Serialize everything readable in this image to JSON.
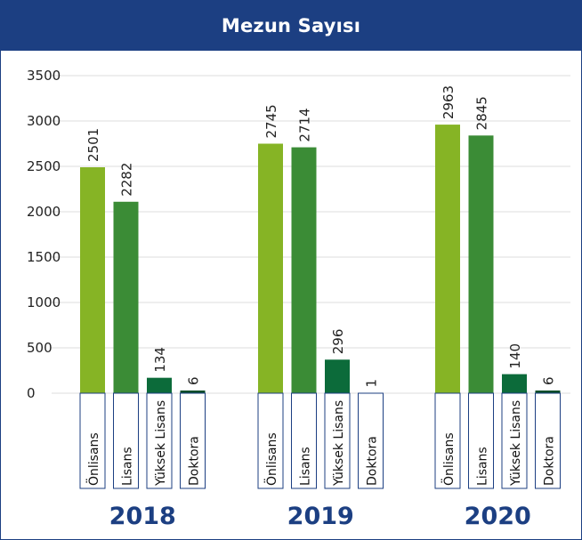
{
  "header": {
    "title": "Mezun Sayısı"
  },
  "colors": {
    "header_bg": "#1c3f82",
    "onlisans": "#86b425",
    "lisans": "#3b8c36",
    "yuksek_lisans": "#0c6b3a",
    "doktora": "#0c4d2a",
    "label_box_border": "#1c3f82",
    "year_text": "#1c3f82"
  },
  "chart_data": {
    "type": "bar",
    "title": "Mezun Sayısı",
    "xlabel": "",
    "ylabel": "",
    "ylim": [
      0,
      3500
    ],
    "yticks": [
      0,
      500,
      1000,
      1500,
      2000,
      2500,
      3000,
      3500
    ],
    "grid": true,
    "groups": [
      "2018",
      "2019",
      "2020"
    ],
    "categories": [
      "Önlisans",
      "Lisans",
      "Yüksek Lisans",
      "Doktora"
    ],
    "series": [
      {
        "group": "2018",
        "values": [
          2501,
          2282,
          134,
          6
        ],
        "drawn_heights": [
          2490,
          2110,
          170,
          30
        ]
      },
      {
        "group": "2019",
        "values": [
          2745,
          2714,
          296,
          1
        ],
        "drawn_heights": [
          2750,
          2710,
          370,
          5
        ]
      },
      {
        "group": "2020",
        "values": [
          2963,
          2845,
          140,
          6
        ],
        "drawn_heights": [
          2960,
          2840,
          210,
          30
        ]
      }
    ]
  }
}
